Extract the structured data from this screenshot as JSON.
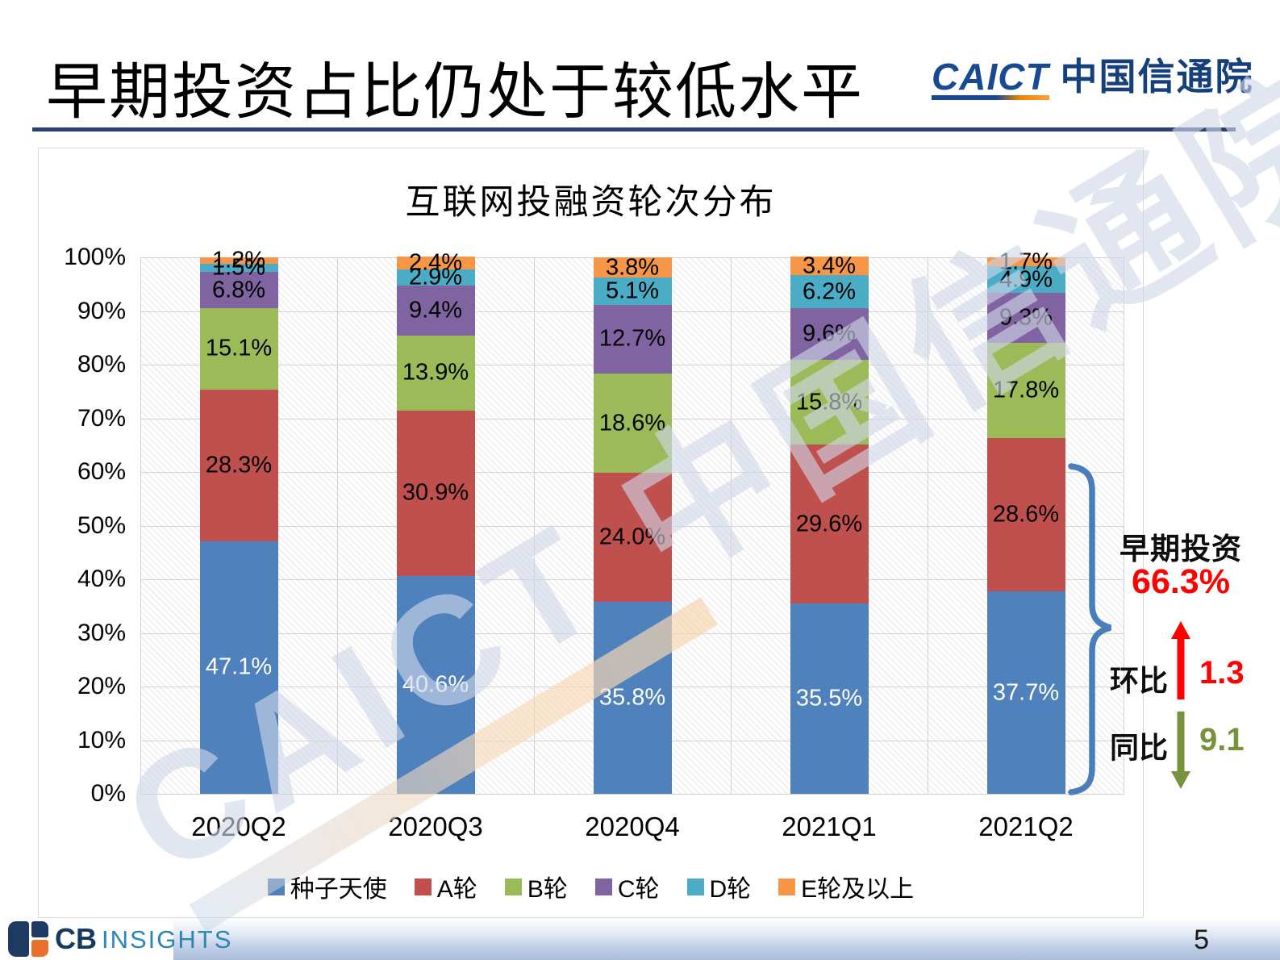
{
  "header": {
    "title": "早期投资占比仍处于较低水平"
  },
  "logo": {
    "caict_en": "CAICT",
    "caict_cn": "中国信通院"
  },
  "watermark": {
    "text": "CAICT 中国信通院"
  },
  "chart_data": {
    "type": "bar",
    "stacked": true,
    "title": "互联网投融资轮次分布",
    "categories": [
      "2020Q2",
      "2020Q3",
      "2020Q4",
      "2021Q1",
      "2021Q2"
    ],
    "series": [
      {
        "name": "种子天使",
        "color": "#4F81BD",
        "label_color": "#FFFFFF",
        "values": [
          47.1,
          40.6,
          35.8,
          35.5,
          37.7
        ]
      },
      {
        "name": "A轮",
        "color": "#C0504D",
        "label_color": "#000000",
        "values": [
          28.3,
          30.9,
          24.0,
          29.6,
          28.6
        ]
      },
      {
        "name": "B轮",
        "color": "#9BBB59",
        "label_color": "#000000",
        "values": [
          15.1,
          13.9,
          18.6,
          15.8,
          17.8
        ]
      },
      {
        "name": "C轮",
        "color": "#8064A2",
        "label_color": "#000000",
        "values": [
          6.8,
          9.4,
          12.7,
          9.6,
          9.3
        ]
      },
      {
        "name": "D轮",
        "color": "#4BACC6",
        "label_color": "#000000",
        "values": [
          1.5,
          2.9,
          5.1,
          6.2,
          4.9
        ]
      },
      {
        "name": "E轮及以上",
        "color": "#F79646",
        "label_color": "#000000",
        "values": [
          1.2,
          2.4,
          3.8,
          3.4,
          1.7
        ]
      }
    ],
    "yticks": [
      "100%",
      "90%",
      "80%",
      "70%",
      "60%",
      "50%",
      "40%",
      "30%",
      "20%",
      "10%",
      "0%"
    ],
    "ylim": [
      0,
      100
    ],
    "grid": true,
    "legend_position": "bottom",
    "value_label_suffix": "%"
  },
  "annotations": {
    "early_label": "早期投资",
    "early_value": "66.3%",
    "mom_label": "环比",
    "mom_value": "1.3",
    "yoy_label": "同比",
    "yoy_value": "9.1",
    "accent_red": "#FF0000",
    "accent_green": "#76933C",
    "brace_color": "#4A7EBB"
  },
  "footer": {
    "brand_cb": "CB",
    "brand_insights": "INSIGHTS",
    "page_number": "5"
  }
}
